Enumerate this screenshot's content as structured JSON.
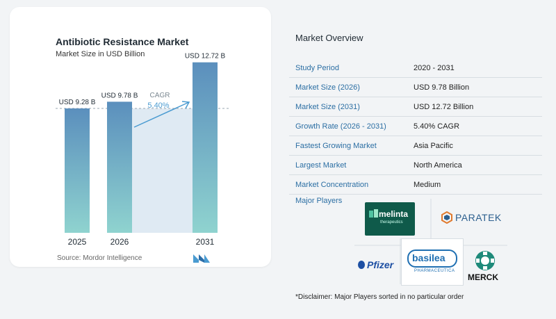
{
  "chart": {
    "title": "Antibiotic Resistance Market",
    "subtitle": "Market Size in USD Billion",
    "source": "Source:  Mordor Intelligence",
    "cagr_label": "CAGR",
    "cagr_value": "5.40%"
  },
  "chart_data": {
    "type": "bar",
    "categories": [
      "2025",
      "2026",
      "2031"
    ],
    "values": [
      9.28,
      9.78,
      12.72
    ],
    "value_labels": [
      "USD 9.28 B",
      "USD 9.78 B",
      "USD 12.72 B"
    ],
    "ylim": [
      0,
      14
    ],
    "colors": {
      "bar_top": "#5b8fbd",
      "bar_bottom": "#8fd3cf",
      "accent": "#4a9bd1",
      "shade": "#dfeaf3"
    }
  },
  "overview": {
    "title": "Market Overview",
    "rows": [
      {
        "label": "Study Period",
        "value": "2020 - 2031"
      },
      {
        "label": "Market Size (2026)",
        "value": "USD 9.78 Billion"
      },
      {
        "label": "Market Size (2031)",
        "value": "USD 12.72 Billion"
      },
      {
        "label": "Growth Rate (2026 - 2031)",
        "value": "5.40% CAGR"
      },
      {
        "label": "Fastest Growing Market",
        "value": "Asia Pacific"
      },
      {
        "label": "Largest Market",
        "value": "North America"
      },
      {
        "label": "Market Concentration",
        "value": "Medium"
      }
    ]
  },
  "players": {
    "label": "Major Players",
    "logos": {
      "melinta": "melinta",
      "melinta_sub": "therapeutics",
      "paratek": "PARATEK",
      "pfizer": "Pfizer",
      "basilea": "basilea",
      "basilea_sub": "PHARMACEUTICA",
      "merck": "MERCK"
    }
  },
  "disclaimer": "*Disclaimer: Major Players sorted in no particular order"
}
